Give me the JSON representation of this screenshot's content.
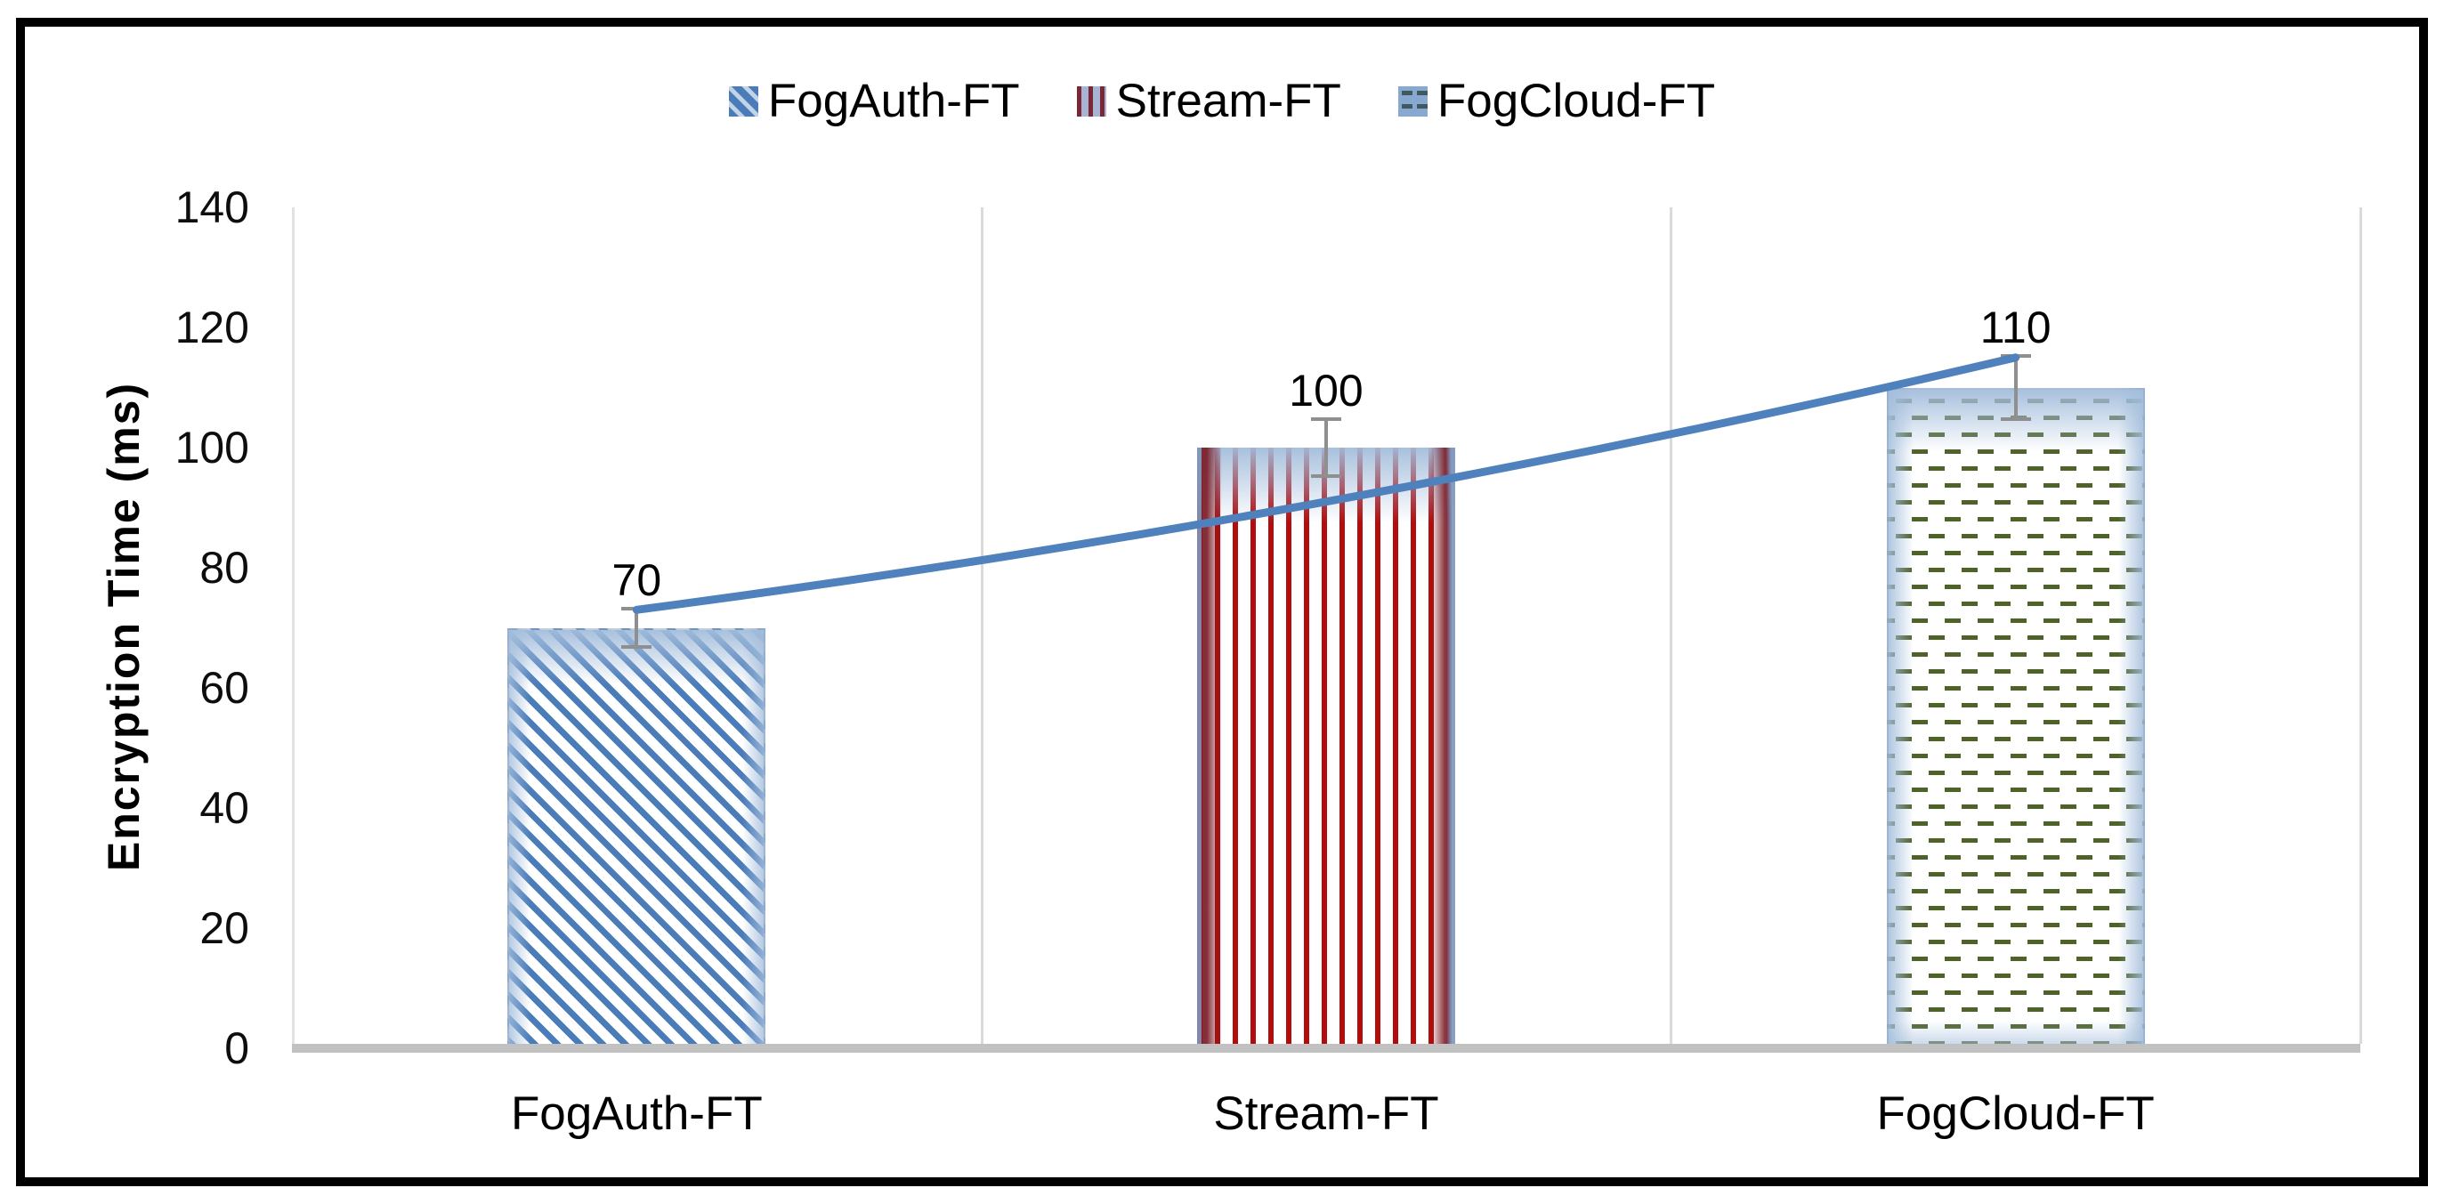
{
  "chart_data": {
    "type": "bar",
    "title": "",
    "categories": [
      "FogAuth-FT",
      "Stream-FT",
      "FogCloud-FT"
    ],
    "series": [
      {
        "name": "FogAuth-FT",
        "value": 70,
        "pattern": "diagonal-stripes-blue"
      },
      {
        "name": "Stream-FT",
        "value": 100,
        "pattern": "vertical-stripes-red"
      },
      {
        "name": "FogCloud-FT",
        "value": 110,
        "pattern": "dashes-olive"
      }
    ],
    "data_labels": [
      "70",
      "100",
      "110"
    ],
    "error_bars": {
      "type": "percentage",
      "value": 5
    },
    "trendline": {
      "shape": "curved",
      "values_at_categories": [
        73,
        91,
        115
      ]
    },
    "ylabel": "Encryption Time (ms)",
    "xlabel": "",
    "ylim": [
      0,
      140
    ],
    "ytick_step": 20,
    "ytick_labels": [
      "0",
      "20",
      "40",
      "60",
      "80",
      "100",
      "120",
      "140"
    ],
    "legend_position": "top",
    "horizontal_gridlines": false,
    "vertical_category_separators": true
  },
  "colors": {
    "trendline": "#4f81bd",
    "bar_stripe_blue": "#4a7cba",
    "bar_stripe_red": "#b30c0c",
    "bar_dash_olive": "#4f6228",
    "error_bar": "#8f8f8f",
    "baseline": "#c1c1c1",
    "gridline": "#dadada",
    "frame_border": "#000000"
  }
}
